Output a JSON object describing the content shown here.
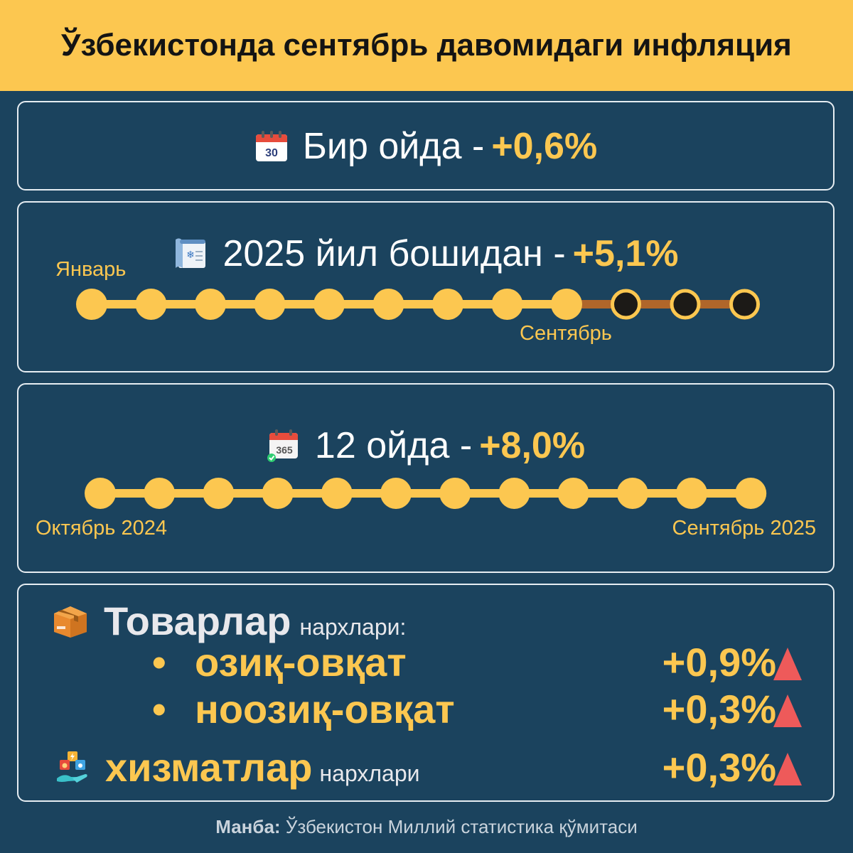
{
  "title": "Ўзбекистонда сентябрь давомидаги инфляция",
  "monthly": {
    "label": "Бир ойда -",
    "value": "+0,6%",
    "icon": "calendar-30-icon",
    "icon_text": "30"
  },
  "ytd": {
    "label": "2025 йил бошидан -",
    "value": "+5,1%",
    "icon": "winter-calendar-icon",
    "start_label": "Январь",
    "end_label": "Сентябрь",
    "months_total": 12,
    "months_elapsed": 9
  },
  "annual": {
    "label": "12 ойда -",
    "value": "+8,0%",
    "icon": "calendar-365-icon",
    "icon_text": "365",
    "start_label": "Октябрь 2024",
    "end_label": "Сентябрь 2025",
    "months_total": 12
  },
  "breakdown": {
    "goods_label": "Товарлар",
    "goods_suffix": "нархлари:",
    "goods_icon": "box-icon",
    "items": [
      {
        "label": "озиқ-овқат",
        "value": "+0,9%",
        "trend": "up"
      },
      {
        "label": "ноозиқ-овқат",
        "value": "+0,3%",
        "trend": "up"
      }
    ],
    "services_label": "хизматлар",
    "services_suffix": "нархлари",
    "services_value": "+0,3%",
    "services_trend": "up",
    "services_icon": "utilities-icon"
  },
  "source": {
    "label": "Манба:",
    "text": "Ўзбекистон Миллий статистика қўмитаси"
  },
  "colors": {
    "background": "#1b435e",
    "accent": "#fcc750",
    "future_line": "#b0662a",
    "future_dot": "#1c1a17",
    "up_arrow": "#ee5a5a"
  }
}
